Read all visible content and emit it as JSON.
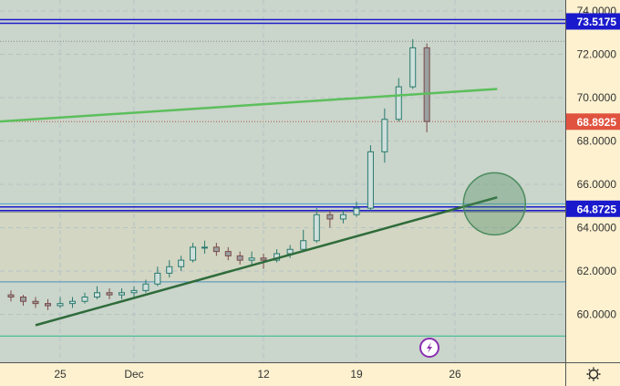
{
  "chart_data": {
    "type": "candlestick",
    "title": "",
    "xlabel": "",
    "ylabel": "",
    "ylim": [
      58.3,
      74.4
    ],
    "grid": true,
    "x_ticks": [
      {
        "label": "25",
        "date": "11-25"
      },
      {
        "label": "Dec",
        "date": "12-01"
      },
      {
        "label": "12",
        "date": "12-12"
      },
      {
        "label": "19",
        "date": "12-19"
      },
      {
        "label": "26",
        "date": "12-26"
      }
    ],
    "y_ticks": [
      "60.0000",
      "62.0000",
      "64.0000",
      "66.0000",
      "68.0000",
      "70.0000",
      "72.0000",
      "74.0000"
    ],
    "candles": [
      {
        "date": "11-21",
        "o": 60.9,
        "h": 61.1,
        "l": 60.6,
        "c": 60.8
      },
      {
        "date": "11-22",
        "o": 60.8,
        "h": 60.9,
        "l": 60.4,
        "c": 60.6
      },
      {
        "date": "11-23",
        "o": 60.6,
        "h": 60.8,
        "l": 60.3,
        "c": 60.5
      },
      {
        "date": "11-24",
        "o": 60.5,
        "h": 60.7,
        "l": 60.2,
        "c": 60.4
      },
      {
        "date": "11-25",
        "o": 60.4,
        "h": 60.8,
        "l": 60.3,
        "c": 60.5
      },
      {
        "date": "11-26",
        "o": 60.5,
        "h": 60.8,
        "l": 60.3,
        "c": 60.6
      },
      {
        "date": "11-27",
        "o": 60.6,
        "h": 61.0,
        "l": 60.5,
        "c": 60.8
      },
      {
        "date": "11-28",
        "o": 60.8,
        "h": 61.3,
        "l": 60.7,
        "c": 61.0
      },
      {
        "date": "11-29",
        "o": 61.0,
        "h": 61.2,
        "l": 60.7,
        "c": 60.9
      },
      {
        "date": "11-30",
        "o": 60.9,
        "h": 61.2,
        "l": 60.7,
        "c": 61.0
      },
      {
        "date": "12-01",
        "o": 61.0,
        "h": 61.3,
        "l": 60.8,
        "c": 61.1
      },
      {
        "date": "12-02",
        "o": 61.1,
        "h": 61.6,
        "l": 61.0,
        "c": 61.4
      },
      {
        "date": "12-03",
        "o": 61.4,
        "h": 62.2,
        "l": 61.3,
        "c": 61.9
      },
      {
        "date": "12-04",
        "o": 61.9,
        "h": 62.5,
        "l": 61.7,
        "c": 62.2
      },
      {
        "date": "12-05",
        "o": 62.2,
        "h": 62.7,
        "l": 62.0,
        "c": 62.5
      },
      {
        "date": "12-06",
        "o": 62.5,
        "h": 63.3,
        "l": 62.4,
        "c": 63.1
      },
      {
        "date": "12-07",
        "o": 63.1,
        "h": 63.4,
        "l": 62.8,
        "c": 63.1
      },
      {
        "date": "12-08",
        "o": 63.1,
        "h": 63.3,
        "l": 62.7,
        "c": 62.9
      },
      {
        "date": "12-09",
        "o": 62.9,
        "h": 63.1,
        "l": 62.5,
        "c": 62.7
      },
      {
        "date": "12-10",
        "o": 62.7,
        "h": 62.9,
        "l": 62.3,
        "c": 62.5
      },
      {
        "date": "12-11",
        "o": 62.5,
        "h": 62.9,
        "l": 62.3,
        "c": 62.6
      },
      {
        "date": "12-12",
        "o": 62.6,
        "h": 62.8,
        "l": 62.1,
        "c": 62.5
      },
      {
        "date": "12-13",
        "o": 62.5,
        "h": 63.0,
        "l": 62.4,
        "c": 62.8
      },
      {
        "date": "12-14",
        "o": 62.8,
        "h": 63.2,
        "l": 62.6,
        "c": 63.0
      },
      {
        "date": "12-15",
        "o": 63.0,
        "h": 63.9,
        "l": 62.9,
        "c": 63.4
      },
      {
        "date": "12-16",
        "o": 63.4,
        "h": 64.9,
        "l": 63.3,
        "c": 64.6
      },
      {
        "date": "12-17",
        "o": 64.6,
        "h": 64.8,
        "l": 64.0,
        "c": 64.4
      },
      {
        "date": "12-18",
        "o": 64.4,
        "h": 64.8,
        "l": 64.2,
        "c": 64.6
      },
      {
        "date": "12-19",
        "o": 64.6,
        "h": 65.2,
        "l": 64.5,
        "c": 64.9
      },
      {
        "date": "12-20",
        "o": 64.9,
        "h": 67.8,
        "l": 64.8,
        "c": 67.5
      },
      {
        "date": "12-21",
        "o": 67.5,
        "h": 69.5,
        "l": 67.0,
        "c": 69.0
      },
      {
        "date": "12-22",
        "o": 69.0,
        "h": 70.9,
        "l": 68.9,
        "c": 70.5
      },
      {
        "date": "12-23",
        "o": 70.5,
        "h": 72.7,
        "l": 70.4,
        "c": 72.3
      },
      {
        "date": "12-24",
        "o": 72.3,
        "h": 72.5,
        "l": 68.4,
        "c": 68.9
      }
    ],
    "horizontal_lines": [
      {
        "price": 73.5175,
        "color": "#1a1acc",
        "style": "double",
        "label": "73.5175"
      },
      {
        "price": 72.6,
        "color": "#8a8a8a",
        "style": "dotted"
      },
      {
        "price": 68.8925,
        "color": "#b85a4a",
        "style": "dotted",
        "label": "68.8925",
        "label_color": "#e0533f"
      },
      {
        "price": 65.1,
        "color": "#4aa0d0",
        "style": "solid"
      },
      {
        "price": 64.8725,
        "color": "#1a1acc",
        "style": "double",
        "label": "64.8725"
      },
      {
        "price": 64.72,
        "color": "#8a8a8a",
        "style": "solid"
      },
      {
        "price": 61.5,
        "color": "#4a90c0",
        "style": "solid"
      },
      {
        "price": 59.0,
        "color": "#2fb88a",
        "style": "solid"
      }
    ],
    "trend_lines": [
      {
        "name": "",
        "from": {
          "date": "11-20",
          "price": 68.9
        },
        "to": {
          "date": "12-29",
          "price": 70.4
        },
        "color": "#5cbf5c"
      },
      {
        "name": "",
        "from": {
          "date": "11-23",
          "price": 59.5
        },
        "to": {
          "date": "12-29",
          "price": 65.4
        },
        "color": "#2e6b3a"
      }
    ],
    "circle_marker": {
      "date": "12-29",
      "price": 65.1,
      "color": "#4c8c5f"
    },
    "colors": {
      "up": "#2a7a6e",
      "down": "#7a4a4a",
      "plot_bg": "#cad5cb",
      "axis_bg": "#fdf1cf"
    }
  },
  "toolbar": {
    "settings_icon": "gear-icon",
    "event_icon": "lightning-icon"
  }
}
